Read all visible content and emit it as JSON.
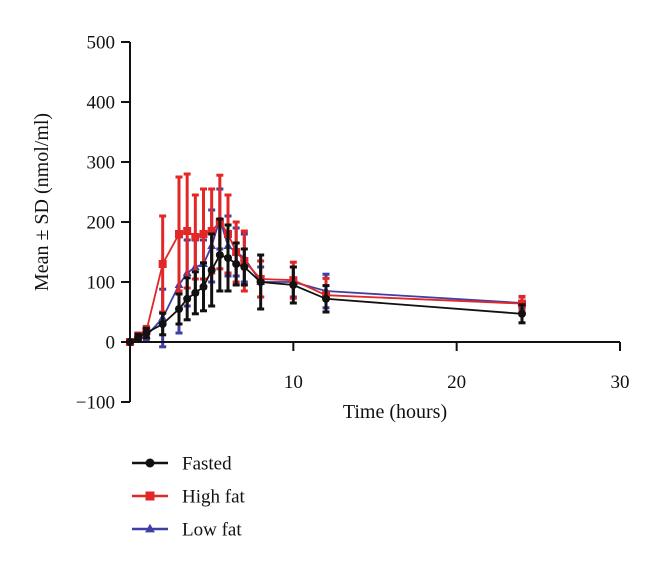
{
  "chart_data": {
    "type": "line",
    "title": "",
    "xlabel": "Time (hours)",
    "ylabel": "Mean ± SD (nmol/ml)",
    "xlim": [
      0,
      30
    ],
    "ylim": [
      -100,
      500
    ],
    "x_ticks": [
      10,
      20,
      30
    ],
    "x_tick_labels": [
      "10",
      "20",
      "30"
    ],
    "y_ticks": [
      -100,
      0,
      100,
      200,
      300,
      400,
      500
    ],
    "y_tick_labels": [
      "−100",
      "0",
      "100",
      "200",
      "300",
      "400",
      "500"
    ],
    "grid": false,
    "legend_position": "bottom-left",
    "series": [
      {
        "name": "Fasted",
        "color": "#111111",
        "marker": "circle",
        "x": [
          0,
          0.5,
          1,
          2,
          3,
          3.5,
          4,
          4.5,
          5,
          5.5,
          6,
          6.5,
          7,
          8,
          10,
          12,
          24
        ],
        "y": [
          0,
          8,
          15,
          30,
          55,
          72,
          82,
          92,
          120,
          145,
          140,
          130,
          125,
          100,
          95,
          72,
          47
        ],
        "err": [
          0,
          5,
          8,
          18,
          25,
          35,
          35,
          40,
          60,
          60,
          55,
          35,
          30,
          45,
          30,
          22,
          15
        ]
      },
      {
        "name": "High fat",
        "color": "#e32626",
        "marker": "square",
        "x": [
          0,
          0.5,
          1,
          2,
          3,
          3.5,
          4,
          4.5,
          5,
          5.5,
          6,
          6.5,
          7,
          8,
          10,
          12,
          24
        ],
        "y": [
          0,
          10,
          18,
          130,
          180,
          185,
          175,
          180,
          185,
          200,
          180,
          150,
          135,
          105,
          103,
          78,
          64
        ],
        "err": [
          0,
          5,
          8,
          80,
          95,
          95,
          70,
          75,
          70,
          78,
          65,
          50,
          50,
          30,
          30,
          28,
          12
        ]
      },
      {
        "name": "Low fat",
        "color": "#3f3fa6",
        "marker": "triangle",
        "x": [
          0,
          0.5,
          1,
          2,
          3,
          3.5,
          4,
          4.5,
          5,
          5.5,
          6,
          6.5,
          7,
          8,
          10,
          12,
          24
        ],
        "y": [
          0,
          6,
          10,
          40,
          95,
          115,
          125,
          130,
          160,
          205,
          160,
          150,
          140,
          100,
          100,
          85,
          65
        ],
        "err": [
          0,
          4,
          6,
          48,
          80,
          55,
          45,
          40,
          60,
          50,
          50,
          40,
          40,
          25,
          25,
          28,
          10
        ]
      }
    ]
  }
}
